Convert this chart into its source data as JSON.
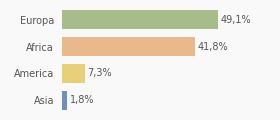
{
  "categories": [
    "Europa",
    "Africa",
    "America",
    "Asia"
  ],
  "values": [
    49.1,
    41.8,
    7.3,
    1.8
  ],
  "labels": [
    "49,1%",
    "41,8%",
    "7,3%",
    "1,8%"
  ],
  "bar_colors": [
    "#a8bb8a",
    "#e8b98a",
    "#e8d07a",
    "#6e8fbf"
  ],
  "background_color": "#f9f9f9",
  "bar_background": "#f9f9f9",
  "xlim": [
    0,
    58
  ],
  "bar_height": 0.72,
  "label_fontsize": 7.0,
  "tick_fontsize": 7.0,
  "tick_color": "#555555",
  "label_color": "#555555"
}
